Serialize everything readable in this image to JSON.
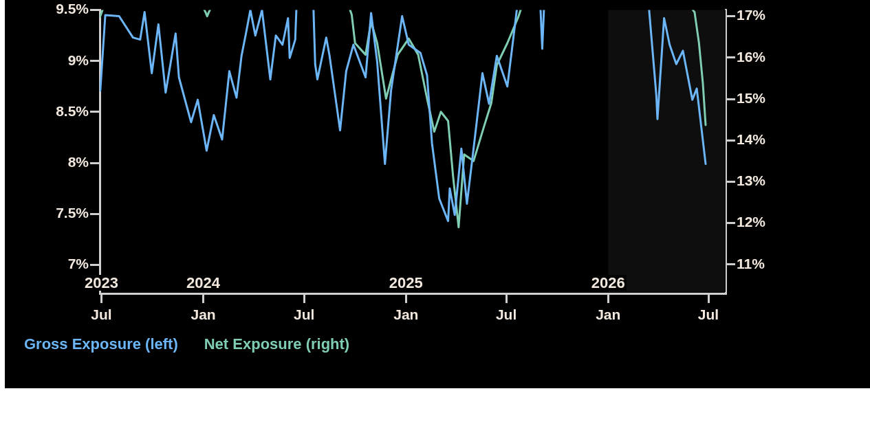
{
  "chart_data": {
    "type": "line",
    "series": [
      {
        "name": "Gross Exposure (left)",
        "color": "#6cb6f7",
        "axis": "y",
        "x": [
          "2023-06-29",
          "2023-07-08",
          "2023-08-02",
          "2023-08-27",
          "2023-09-09",
          "2023-09-17",
          "2023-09-30",
          "2023-10-12",
          "2023-10-25",
          "2023-11-12",
          "2023-11-18",
          "2023-12-10",
          "2023-12-22",
          "2024-01-07",
          "2024-01-20",
          "2024-02-04",
          "2024-02-17",
          "2024-03-01",
          "2024-03-10",
          "2024-03-18",
          "2024-03-26",
          "2024-04-04",
          "2024-04-16",
          "2024-05-01",
          "2024-05-11",
          "2024-05-23",
          "2024-06-02",
          "2024-06-05",
          "2024-06-15",
          "2024-06-17",
          "2024-07-01",
          "2024-07-18",
          "2024-07-21",
          "2024-07-25",
          "2024-08-10",
          "2024-08-16",
          "2024-09-04",
          "2024-09-15",
          "2024-09-28",
          "2024-10-20",
          "2024-10-30",
          "2024-11-10",
          "2024-11-24",
          "2024-12-05",
          "2024-12-25",
          "2025-01-06",
          "2025-01-27",
          "2025-02-08",
          "2025-02-17",
          "2025-03-02",
          "2025-03-18",
          "2025-03-21",
          "2025-03-30",
          "2025-04-11",
          "2025-04-21",
          "2025-05-03",
          "2025-05-19",
          "2025-05-31",
          "2025-06-14",
          "2025-07-03",
          "2025-07-11",
          "2025-07-20",
          "2025-08-10",
          "2025-09-01",
          "2025-09-04",
          "2025-09-07",
          "2025-11-01",
          "2026-03-16",
          "2026-03-29",
          "2026-03-31",
          "2026-04-12",
          "2026-04-22",
          "2026-05-04",
          "2026-05-16",
          "2026-06-02",
          "2026-06-10",
          "2026-06-26"
        ],
        "values": [
          8.71,
          9.45,
          9.44,
          9.23,
          9.21,
          9.48,
          8.88,
          9.36,
          8.69,
          9.27,
          8.84,
          8.4,
          8.62,
          8.12,
          8.47,
          8.23,
          8.9,
          8.64,
          9.05,
          9.27,
          9.5,
          9.25,
          9.5,
          8.82,
          9.25,
          9.16,
          9.42,
          9.03,
          9.21,
          9.5,
          null,
          9.5,
          8.97,
          8.82,
          9.23,
          9.05,
          8.32,
          8.9,
          9.16,
          8.84,
          9.47,
          8.99,
          7.99,
          8.71,
          9.44,
          9.16,
          9.08,
          8.86,
          8.19,
          7.65,
          7.43,
          7.75,
          7.49,
          8.14,
          7.6,
          8.14,
          8.88,
          8.58,
          9.05,
          8.75,
          9.1,
          9.5,
          null,
          9.5,
          9.12,
          9.5,
          null,
          9.5,
          8.66,
          8.43,
          9.42,
          9.16,
          8.97,
          9.1,
          8.62,
          8.73,
          7.99
        ]
      },
      {
        "name": "Net Exposure (right)",
        "color": "#7fcdb2",
        "axis": "y2",
        "x": [
          "2023-06-29",
          "2023-07-03",
          "2023-07-10",
          "2024-01-03",
          "2024-01-05",
          "2024-01-08",
          "2024-01-11",
          "2024-01-13",
          "2024-01-20",
          "2024-09-22",
          "2024-09-25",
          "2024-10-01",
          "2024-10-20",
          "2024-10-30",
          "2024-11-10",
          "2024-11-26",
          "2024-12-17",
          "2025-01-06",
          "2025-01-23",
          "2025-02-08",
          "2025-02-21",
          "2025-03-05",
          "2025-03-18",
          "2025-03-27",
          "2025-04-06",
          "2025-04-16",
          "2025-05-03",
          "2025-05-19",
          "2025-06-04",
          "2025-06-14",
          "2025-07-03",
          "2025-07-23",
          "2025-07-27",
          "2025-08-10",
          "2026-06-03",
          "2026-06-06",
          "2026-06-14",
          "2026-06-21",
          "2026-06-26"
        ],
        "values": [
          17.0,
          17.15,
          null,
          17.15,
          17.1,
          17.0,
          17.1,
          17.15,
          null,
          17.15,
          17.04,
          16.35,
          16.07,
          16.87,
          16.35,
          15.01,
          16.07,
          16.46,
          16.07,
          15.01,
          14.21,
          14.69,
          14.47,
          13.13,
          11.9,
          13.66,
          13.5,
          14.21,
          14.9,
          15.82,
          16.35,
          16.99,
          17.15,
          null,
          17.15,
          17.1,
          16.35,
          15.38,
          14.37
        ]
      }
    ],
    "xlim": [
      "2023-06-28",
      "2026-08-01"
    ],
    "xticks": [
      {
        "value": "2023-07-01",
        "label": "Jul"
      },
      {
        "value": "2024-01-01",
        "label": "Jan"
      },
      {
        "value": "2024-07-01",
        "label": "Jul"
      },
      {
        "value": "2025-01-01",
        "label": "Jan"
      },
      {
        "value": "2025-07-01",
        "label": "Jul"
      },
      {
        "value": "2026-01-01",
        "label": "Jan"
      },
      {
        "value": "2026-07-01",
        "label": "Jul"
      }
    ],
    "ylim": [
      6.72,
      9.5
    ],
    "yticks": [
      {
        "value": 7,
        "label": "7%"
      },
      {
        "value": 7.5,
        "label": "7.5%"
      },
      {
        "value": 8,
        "label": "8%"
      },
      {
        "value": 8.5,
        "label": "8.5%"
      },
      {
        "value": 9,
        "label": "9%"
      },
      {
        "value": 9.5,
        "label": "9.5%"
      }
    ],
    "y2lim": [
      10.3,
      17.15
    ],
    "y2ticks": [
      {
        "value": 11,
        "label": "11%"
      },
      {
        "value": 12,
        "label": "12%"
      },
      {
        "value": 13,
        "label": "13%"
      },
      {
        "value": 14,
        "label": "14%"
      },
      {
        "value": 15,
        "label": "15%"
      },
      {
        "value": 16,
        "label": "16%"
      },
      {
        "value": 17,
        "label": "17%"
      }
    ],
    "bands": [
      {
        "axis": "x",
        "from": "2026-01-01",
        "to": "2026-08-01",
        "color": "#0e0e0e"
      }
    ],
    "x2lim": [
      "2023-06-28",
      "2026-08-01"
    ],
    "x2ticks": [
      {
        "value": "2023-07-01",
        "label": "2023"
      },
      {
        "value": "2024-01-01",
        "label": "2024"
      },
      {
        "value": "2025-01-01",
        "label": "2025"
      },
      {
        "value": "2026-01-01",
        "label": "2026"
      }
    ],
    "grid": false,
    "legend": "bottom left",
    "marker": "none",
    "line_style": "solid"
  }
}
